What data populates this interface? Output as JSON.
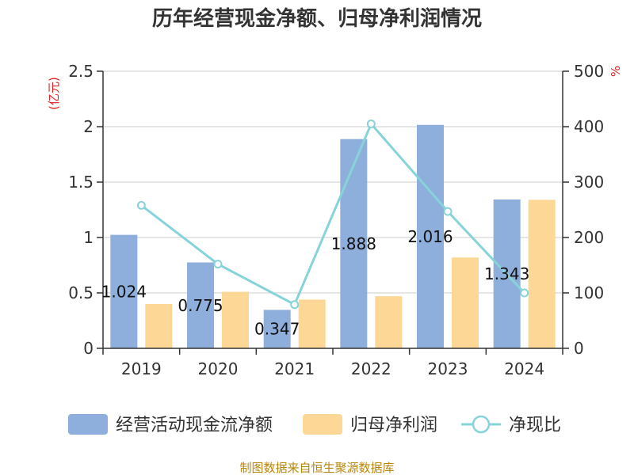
{
  "title": "历年经营现金净额、归母净利润情况",
  "left_unit": "(亿元)",
  "right_unit": "%",
  "source": "制图数据来自恒生聚源数据库",
  "colors": {
    "cash": "#8eaedb",
    "profit": "#fdd795",
    "ratio": "#86d3d8",
    "axis": "#333333",
    "grid": "#cccccc",
    "unit": "#e02020",
    "source": "#b8860b"
  },
  "chart_data": {
    "type": "bar",
    "title": "历年经营现金净额、归母净利润情况",
    "categories": [
      "2019",
      "2020",
      "2021",
      "2022",
      "2023",
      "2024"
    ],
    "series": [
      {
        "name": "经营活动现金流净额",
        "type": "bar",
        "axis": "left",
        "values": [
          1.024,
          0.775,
          0.347,
          1.888,
          2.016,
          1.343
        ],
        "labels": [
          "1.024",
          "0.775",
          "0.347",
          "1.888",
          "2.016",
          "1.343"
        ]
      },
      {
        "name": "归母净利润",
        "type": "bar",
        "axis": "left",
        "values": [
          0.4,
          0.51,
          0.44,
          0.47,
          0.82,
          1.34
        ]
      },
      {
        "name": "净现比",
        "type": "line",
        "axis": "right",
        "values": [
          258,
          152,
          79,
          405,
          247,
          100
        ]
      }
    ],
    "y_left": {
      "label": "(亿元)",
      "range": [
        0,
        2.5
      ],
      "ticks": [
        "0",
        "0.5",
        "1",
        "1.5",
        "2",
        "2.5"
      ]
    },
    "y_right": {
      "label": "%",
      "range": [
        0,
        500
      ],
      "ticks": [
        "0",
        "100",
        "200",
        "300",
        "400",
        "500"
      ]
    },
    "grid": true,
    "legend_position": "bottom"
  }
}
